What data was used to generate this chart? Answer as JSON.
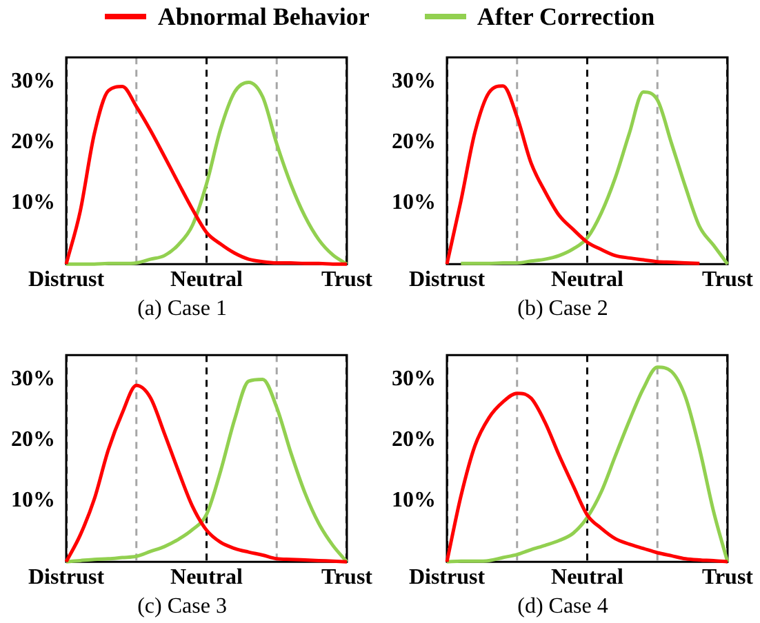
{
  "chart_data": [
    {
      "type": "line",
      "title": "(a) Case 1",
      "legend": "top",
      "marker": "none",
      "line_style": "solid",
      "grid": "x",
      "ylim": [
        0,
        34
      ],
      "categories": [
        "Distrust",
        null,
        null,
        null,
        null,
        null,
        null,
        null,
        null,
        null,
        "Neutral",
        null,
        null,
        null,
        null,
        null,
        null,
        null,
        null,
        null,
        "Trust"
      ],
      "yticks": [
        {
          "value": 10,
          "label": "10%"
        },
        {
          "value": 20,
          "label": "20%"
        },
        {
          "value": 30,
          "label": "30%"
        }
      ],
      "series": [
        {
          "name": "Abnormal Behavior",
          "color": "#ff0000",
          "values": [
            0,
            8.7,
            21.4,
            28.5,
            29.2,
            25.9,
            22,
            17.7,
            13.3,
            9,
            5.2,
            3.3,
            1.8,
            0.8,
            0.4,
            0.2,
            0.2,
            0.1,
            0.1,
            0,
            0
          ]
        },
        {
          "name": "After Correction",
          "color": "#92d050",
          "values": [
            0,
            0,
            0,
            0.1,
            0.1,
            0.2,
            0.8,
            1.4,
            3.2,
            6.4,
            13.2,
            22.2,
            28.3,
            29.9,
            27.5,
            19.8,
            13.2,
            7.9,
            4,
            1.5,
            0
          ]
        }
      ]
    },
    {
      "type": "line",
      "title": "(b) Case 2",
      "marker": "none",
      "line_style": "solid",
      "grid": "x",
      "ylim": [
        0,
        34
      ],
      "categories": [
        "Distrust",
        null,
        null,
        null,
        null,
        null,
        null,
        null,
        null,
        null,
        "Neutral",
        null,
        null,
        null,
        null,
        null,
        null,
        null,
        null,
        null,
        "Trust"
      ],
      "yticks": [
        {
          "value": 10,
          "label": "10%"
        },
        {
          "value": 20,
          "label": "20%"
        },
        {
          "value": 30,
          "label": "30%"
        }
      ],
      "series": [
        {
          "color": "#ff0000",
          "values": [
            0,
            10.4,
            21.7,
            28.2,
            29.3,
            24.2,
            16.6,
            11.9,
            8,
            5.7,
            3.6,
            2.4,
            1.4,
            1,
            0.7,
            0.4,
            0.3,
            0.2,
            0.1,
            null,
            null
          ]
        },
        {
          "color": "#92d050",
          "values": [
            null,
            0.1,
            0.1,
            0.1,
            0.2,
            0.2,
            0.5,
            0.8,
            1.4,
            2.5,
            4.3,
            8.4,
            14.2,
            21.5,
            28.3,
            27,
            19.9,
            12.7,
            6.2,
            3.1,
            0
          ]
        }
      ]
    },
    {
      "type": "line",
      "title": "(c) Case 3",
      "marker": "none",
      "line_style": "solid",
      "grid": "x",
      "ylim": [
        0,
        34
      ],
      "categories": [
        "Distrust",
        null,
        null,
        null,
        null,
        null,
        null,
        null,
        null,
        null,
        "Neutral",
        null,
        null,
        null,
        null,
        null,
        null,
        null,
        null,
        null,
        "Trust"
      ],
      "yticks": [
        {
          "value": 10,
          "label": "10%"
        },
        {
          "value": 20,
          "label": "20%"
        },
        {
          "value": 30,
          "label": "30%"
        }
      ],
      "series": [
        {
          "color": "#ff0000",
          "values": [
            0,
            4.4,
            10.3,
            18.4,
            24.5,
            29,
            27,
            21.1,
            14.9,
            9.1,
            5.2,
            3.2,
            2.2,
            1.6,
            1.1,
            0.5,
            0.4,
            0.3,
            0.2,
            0.1,
            0
          ]
        },
        {
          "color": "#92d050",
          "values": [
            0,
            0.2,
            0.4,
            0.5,
            0.7,
            0.9,
            1.7,
            2.5,
            3.7,
            5.3,
            7.8,
            14.9,
            23.4,
            29.7,
            30,
            25.4,
            18,
            11.4,
            6.3,
            2.7,
            0
          ]
        }
      ]
    },
    {
      "type": "line",
      "title": "(d) Case 4",
      "marker": "none",
      "line_style": "solid",
      "grid": "x",
      "ylim": [
        0,
        34
      ],
      "categories": [
        "Distrust",
        null,
        null,
        null,
        null,
        null,
        null,
        null,
        null,
        null,
        "Neutral",
        null,
        null,
        null,
        null,
        null,
        null,
        null,
        null,
        null,
        "Trust"
      ],
      "yticks": [
        {
          "value": 10,
          "label": "10%"
        },
        {
          "value": 20,
          "label": "20%"
        },
        {
          "value": 30,
          "label": "30%"
        }
      ],
      "series": [
        {
          "color": "#ff0000",
          "values": [
            0,
            10.8,
            19.1,
            23.7,
            26.3,
            27.7,
            26.9,
            22.9,
            17.5,
            12.5,
            7.7,
            5.5,
            3.8,
            2.9,
            2.2,
            1.5,
            1,
            0.5,
            0.3,
            0.2,
            0
          ]
        },
        {
          "color": "#92d050",
          "values": [
            0,
            0.1,
            0.1,
            0.2,
            0.7,
            1.2,
            2,
            2.7,
            3.5,
            4.7,
            7.3,
            11.5,
            17.4,
            23.2,
            28.5,
            32,
            31.3,
            27.1,
            18.6,
            8.3,
            0
          ]
        }
      ]
    }
  ]
}
